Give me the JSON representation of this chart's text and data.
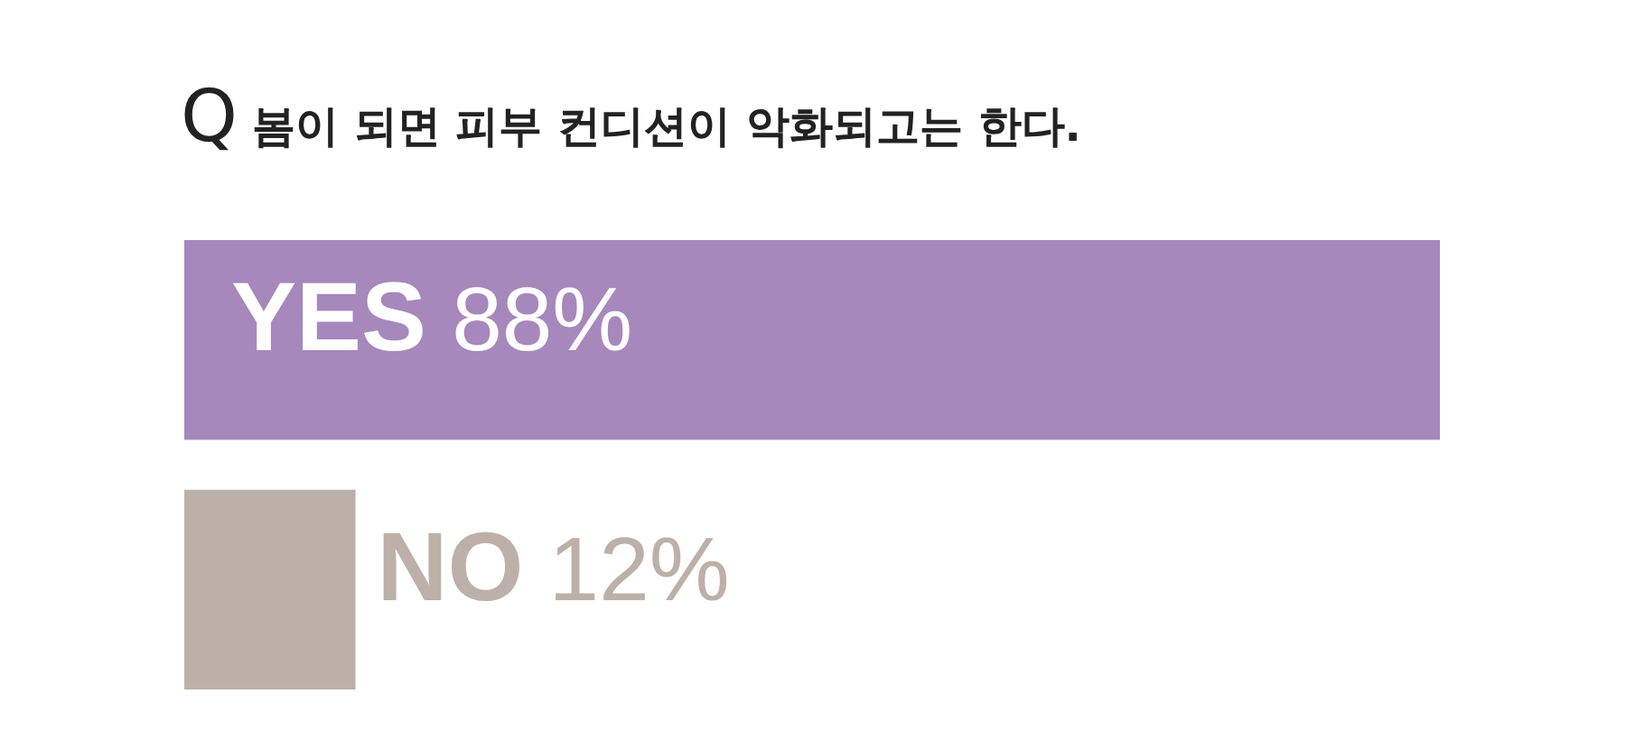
{
  "chart_data": {
    "type": "bar",
    "orientation": "horizontal",
    "title": "Q 봄이 되면 피부 컨디션이 악화되고는 한다.",
    "categories": [
      "YES",
      "NO"
    ],
    "values": [
      88,
      12
    ],
    "colors": [
      "#a688bc",
      "#bdb0a8"
    ],
    "value_labels": [
      "88%",
      "12%"
    ]
  }
}
